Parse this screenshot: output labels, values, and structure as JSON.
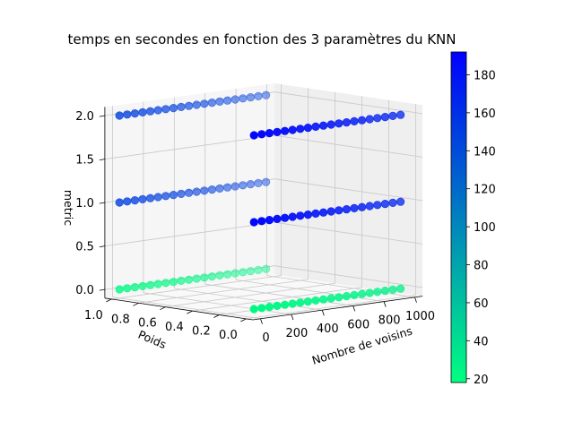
{
  "chart_data": {
    "type": "scatter3d",
    "title": "temps en secondes en fonction des 3 paramètres du KNN",
    "xlabel": "Nombre de voisins",
    "ylabel": "Poids",
    "zlabel": "metric",
    "x_ticks": [
      "0",
      "200",
      "400",
      "600",
      "800",
      "1000"
    ],
    "y_ticks": [
      "0.0",
      "0.2",
      "0.4",
      "0.6",
      "0.8",
      "1.0"
    ],
    "z_ticks": [
      "0.0",
      "0.5",
      "1.0",
      "1.5",
      "2.0"
    ],
    "xlim": [
      0,
      1000
    ],
    "ylim": [
      0,
      1
    ],
    "zlim": [
      0,
      2
    ],
    "neighbors": [
      1,
      51,
      101,
      151,
      201,
      251,
      301,
      351,
      401,
      451,
      501,
      551,
      601,
      651,
      701,
      751,
      801,
      851,
      901,
      951
    ],
    "series": [
      {
        "weight": 0,
        "metric": 0,
        "time_start": 22,
        "time_end": 28
      },
      {
        "weight": 0,
        "metric": 1,
        "time_start": 188,
        "time_end": 168
      },
      {
        "weight": 0,
        "metric": 2,
        "time_start": 190,
        "time_end": 168
      },
      {
        "weight": 1,
        "metric": 0,
        "time_start": 22,
        "time_end": 26
      },
      {
        "weight": 1,
        "metric": 1,
        "time_start": 150,
        "time_end": 150
      },
      {
        "weight": 1,
        "metric": 2,
        "time_start": 150,
        "time_end": 150
      }
    ],
    "colorbar": {
      "label_ticks": [
        "20",
        "40",
        "60",
        "80",
        "100",
        "120",
        "140",
        "160",
        "180"
      ],
      "min": 18,
      "max": 192,
      "color_low": "#00ff80",
      "color_high": "#0000ff"
    },
    "grid": true
  }
}
